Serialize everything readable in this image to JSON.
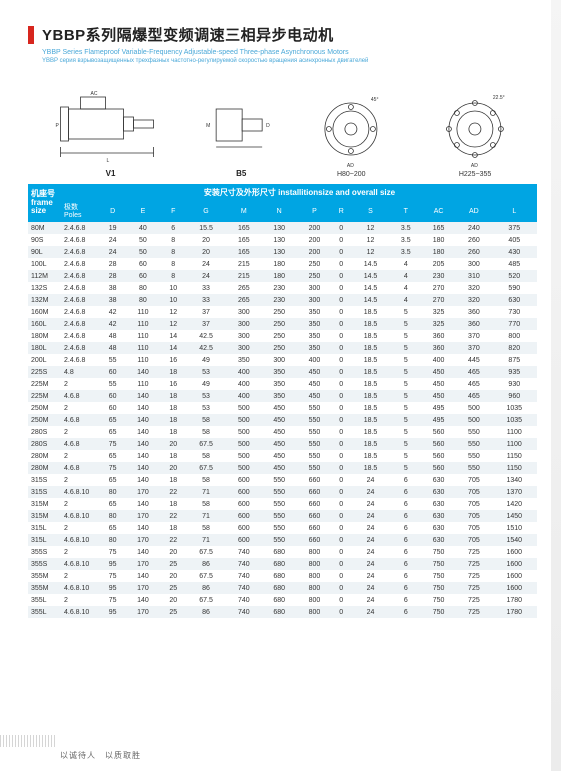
{
  "title": {
    "cn": "YBBP系列隔爆型变频调速三相异步电动机",
    "en": "YBBP Series Flameproof Variable-Frequency Adjustable-speed Three-phase Asynchronous Motors",
    "ru": "YBBP серия взрывозащищенных трехфазных частотно-регулируемой скоростью вращения асинхронных двигателей"
  },
  "diagrams": {
    "v1_label": "V1",
    "b5_label": "B5",
    "cap1": "H80~200",
    "cap2": "H225~355"
  },
  "table": {
    "banner": "安装尺寸及外形尺寸 installitionsize and overall size",
    "frame_header": "机座号\nframe size",
    "poles_header": "极数\nPoles",
    "cols": [
      "D",
      "E",
      "F",
      "G",
      "M",
      "N",
      "P",
      "R",
      "S",
      "T",
      "AC",
      "AD",
      "L"
    ],
    "rows": [
      [
        "80M",
        "2.4.6.8",
        "19",
        "40",
        "6",
        "15.5",
        "165",
        "130",
        "200",
        "0",
        "12",
        "3.5",
        "165",
        "240",
        "375"
      ],
      [
        "90S",
        "2.4.6.8",
        "24",
        "50",
        "8",
        "20",
        "165",
        "130",
        "200",
        "0",
        "12",
        "3.5",
        "180",
        "260",
        "405"
      ],
      [
        "90L",
        "2.4.6.8",
        "24",
        "50",
        "8",
        "20",
        "165",
        "130",
        "200",
        "0",
        "12",
        "3.5",
        "180",
        "260",
        "430"
      ],
      [
        "100L",
        "2.4.6.8",
        "28",
        "60",
        "8",
        "24",
        "215",
        "180",
        "250",
        "0",
        "14.5",
        "4",
        "205",
        "300",
        "485"
      ],
      [
        "112M",
        "2.4.6.8",
        "28",
        "60",
        "8",
        "24",
        "215",
        "180",
        "250",
        "0",
        "14.5",
        "4",
        "230",
        "310",
        "520"
      ],
      [
        "132S",
        "2.4.6.8",
        "38",
        "80",
        "10",
        "33",
        "265",
        "230",
        "300",
        "0",
        "14.5",
        "4",
        "270",
        "320",
        "590"
      ],
      [
        "132M",
        "2.4.6.8",
        "38",
        "80",
        "10",
        "33",
        "265",
        "230",
        "300",
        "0",
        "14.5",
        "4",
        "270",
        "320",
        "630"
      ],
      [
        "160M",
        "2.4.6.8",
        "42",
        "110",
        "12",
        "37",
        "300",
        "250",
        "350",
        "0",
        "18.5",
        "5",
        "325",
        "360",
        "730"
      ],
      [
        "160L",
        "2.4.6.8",
        "42",
        "110",
        "12",
        "37",
        "300",
        "250",
        "350",
        "0",
        "18.5",
        "5",
        "325",
        "360",
        "770"
      ],
      [
        "180M",
        "2.4.6.8",
        "48",
        "110",
        "14",
        "42.5",
        "300",
        "250",
        "350",
        "0",
        "18.5",
        "5",
        "360",
        "370",
        "800"
      ],
      [
        "180L",
        "2.4.6.8",
        "48",
        "110",
        "14",
        "42.5",
        "300",
        "250",
        "350",
        "0",
        "18.5",
        "5",
        "360",
        "370",
        "820"
      ],
      [
        "200L",
        "2.4.6.8",
        "55",
        "110",
        "16",
        "49",
        "350",
        "300",
        "400",
        "0",
        "18.5",
        "5",
        "400",
        "445",
        "875"
      ],
      [
        "225S",
        "4.8",
        "60",
        "140",
        "18",
        "53",
        "400",
        "350",
        "450",
        "0",
        "18.5",
        "5",
        "450",
        "465",
        "935"
      ],
      [
        "225M",
        "2",
        "55",
        "110",
        "16",
        "49",
        "400",
        "350",
        "450",
        "0",
        "18.5",
        "5",
        "450",
        "465",
        "930"
      ],
      [
        "225M",
        "4.6.8",
        "60",
        "140",
        "18",
        "53",
        "400",
        "350",
        "450",
        "0",
        "18.5",
        "5",
        "450",
        "465",
        "960"
      ],
      [
        "250M",
        "2",
        "60",
        "140",
        "18",
        "53",
        "500",
        "450",
        "550",
        "0",
        "18.5",
        "5",
        "495",
        "500",
        "1035"
      ],
      [
        "250M",
        "4.6.8",
        "65",
        "140",
        "18",
        "58",
        "500",
        "450",
        "550",
        "0",
        "18.5",
        "5",
        "495",
        "500",
        "1035"
      ],
      [
        "280S",
        "2",
        "65",
        "140",
        "18",
        "58",
        "500",
        "450",
        "550",
        "0",
        "18.5",
        "5",
        "560",
        "550",
        "1100"
      ],
      [
        "280S",
        "4.6.8",
        "75",
        "140",
        "20",
        "67.5",
        "500",
        "450",
        "550",
        "0",
        "18.5",
        "5",
        "560",
        "550",
        "1100"
      ],
      [
        "280M",
        "2",
        "65",
        "140",
        "18",
        "58",
        "500",
        "450",
        "550",
        "0",
        "18.5",
        "5",
        "560",
        "550",
        "1150"
      ],
      [
        "280M",
        "4.6.8",
        "75",
        "140",
        "20",
        "67.5",
        "500",
        "450",
        "550",
        "0",
        "18.5",
        "5",
        "560",
        "550",
        "1150"
      ],
      [
        "315S",
        "2",
        "65",
        "140",
        "18",
        "58",
        "600",
        "550",
        "660",
        "0",
        "24",
        "6",
        "630",
        "705",
        "1340"
      ],
      [
        "315S",
        "4.6.8.10",
        "80",
        "170",
        "22",
        "71",
        "600",
        "550",
        "660",
        "0",
        "24",
        "6",
        "630",
        "705",
        "1370"
      ],
      [
        "315M",
        "2",
        "65",
        "140",
        "18",
        "58",
        "600",
        "550",
        "660",
        "0",
        "24",
        "6",
        "630",
        "705",
        "1420"
      ],
      [
        "315M",
        "4.6.8.10",
        "80",
        "170",
        "22",
        "71",
        "600",
        "550",
        "660",
        "0",
        "24",
        "6",
        "630",
        "705",
        "1450"
      ],
      [
        "315L",
        "2",
        "65",
        "140",
        "18",
        "58",
        "600",
        "550",
        "660",
        "0",
        "24",
        "6",
        "630",
        "705",
        "1510"
      ],
      [
        "315L",
        "4.6.8.10",
        "80",
        "170",
        "22",
        "71",
        "600",
        "550",
        "660",
        "0",
        "24",
        "6",
        "630",
        "705",
        "1540"
      ],
      [
        "355S",
        "2",
        "75",
        "140",
        "20",
        "67.5",
        "740",
        "680",
        "800",
        "0",
        "24",
        "6",
        "750",
        "725",
        "1600"
      ],
      [
        "355S",
        "4.6.8.10",
        "95",
        "170",
        "25",
        "86",
        "740",
        "680",
        "800",
        "0",
        "24",
        "6",
        "750",
        "725",
        "1600"
      ],
      [
        "355M",
        "2",
        "75",
        "140",
        "20",
        "67.5",
        "740",
        "680",
        "800",
        "0",
        "24",
        "6",
        "750",
        "725",
        "1600"
      ],
      [
        "355M",
        "4.6.8.10",
        "95",
        "170",
        "25",
        "86",
        "740",
        "680",
        "800",
        "0",
        "24",
        "6",
        "750",
        "725",
        "1600"
      ],
      [
        "355L",
        "2",
        "75",
        "140",
        "20",
        "67.5",
        "740",
        "680",
        "800",
        "0",
        "24",
        "6",
        "750",
        "725",
        "1780"
      ],
      [
        "355L",
        "4.6.8.10",
        "95",
        "170",
        "25",
        "86",
        "740",
        "680",
        "800",
        "0",
        "24",
        "6",
        "750",
        "725",
        "1780"
      ]
    ]
  },
  "footer": "以诚待人　以质取胜",
  "colors": {
    "accent": "#00a5e3",
    "red": "#d7261e"
  }
}
